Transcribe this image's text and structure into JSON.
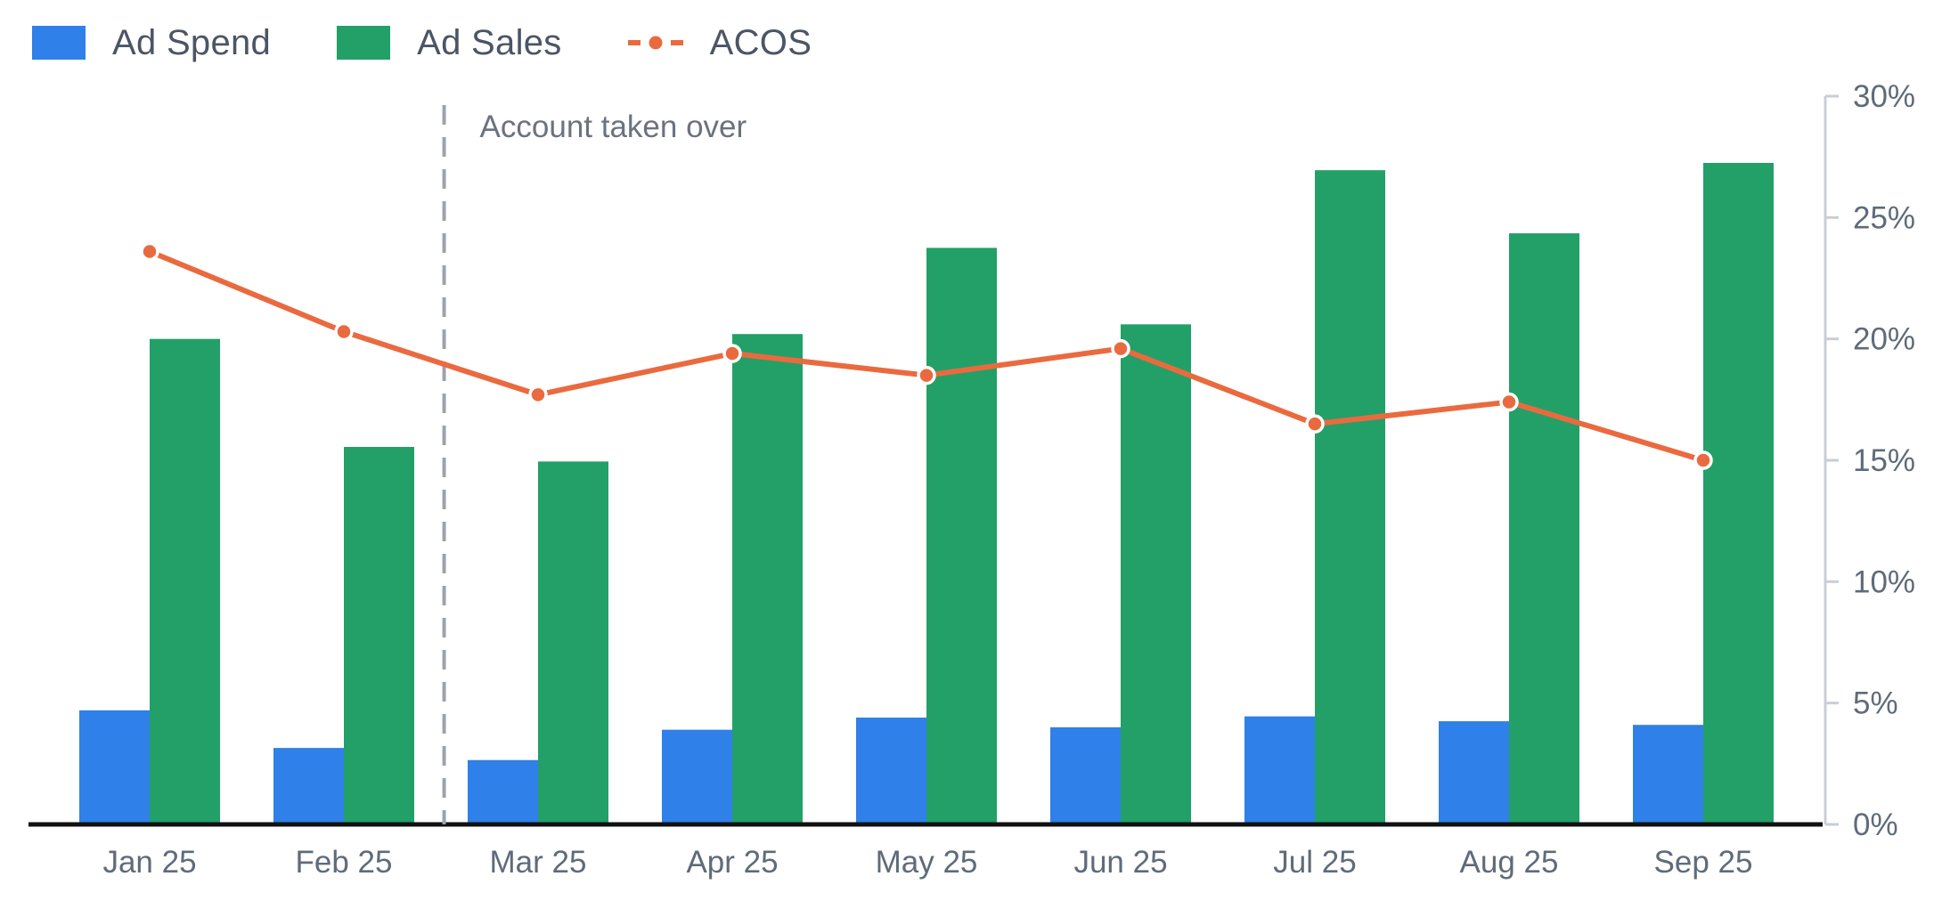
{
  "colors": {
    "ad_spend": "#2f80e8",
    "ad_sales": "#22a068",
    "acos": "#ea6a3f",
    "axis": "#111111",
    "right_axis": "#c9ced6",
    "marker_line": "#9ca3af"
  },
  "legend": {
    "ad_spend": "Ad Spend",
    "ad_sales": "Ad Sales",
    "acos": "ACOS"
  },
  "chart_data": {
    "type": "bar",
    "categories": [
      "Jan 25",
      "Feb 25",
      "Mar 25",
      "Apr 25",
      "May 25",
      "Jun 25",
      "Jul 25",
      "Aug 25",
      "Sep 25"
    ],
    "series": [
      {
        "name": "Ad Spend",
        "type": "bar",
        "axis": "left",
        "values": [
          4.7,
          3.15,
          2.65,
          3.9,
          4.4,
          4.0,
          4.45,
          4.25,
          4.1
        ]
      },
      {
        "name": "Ad Sales",
        "type": "bar",
        "axis": "left",
        "values": [
          20.0,
          15.55,
          14.95,
          20.2,
          23.75,
          20.6,
          26.95,
          24.35,
          27.25
        ]
      },
      {
        "name": "ACOS",
        "type": "line",
        "axis": "right",
        "values": [
          23.6,
          20.3,
          17.7,
          19.4,
          18.5,
          19.6,
          16.5,
          17.4,
          15.0
        ]
      }
    ],
    "right_axis": {
      "ylim": [
        0,
        30
      ],
      "ticks": [
        "0%",
        "5%",
        "10%",
        "15%",
        "20%",
        "25%",
        "30%"
      ]
    },
    "left_axis": {
      "ylim": [
        0,
        30
      ]
    },
    "annotation": {
      "text": "Account taken over",
      "between": [
        "Feb 25",
        "Mar 25"
      ]
    },
    "grid": false,
    "legend_position": "top-left"
  }
}
